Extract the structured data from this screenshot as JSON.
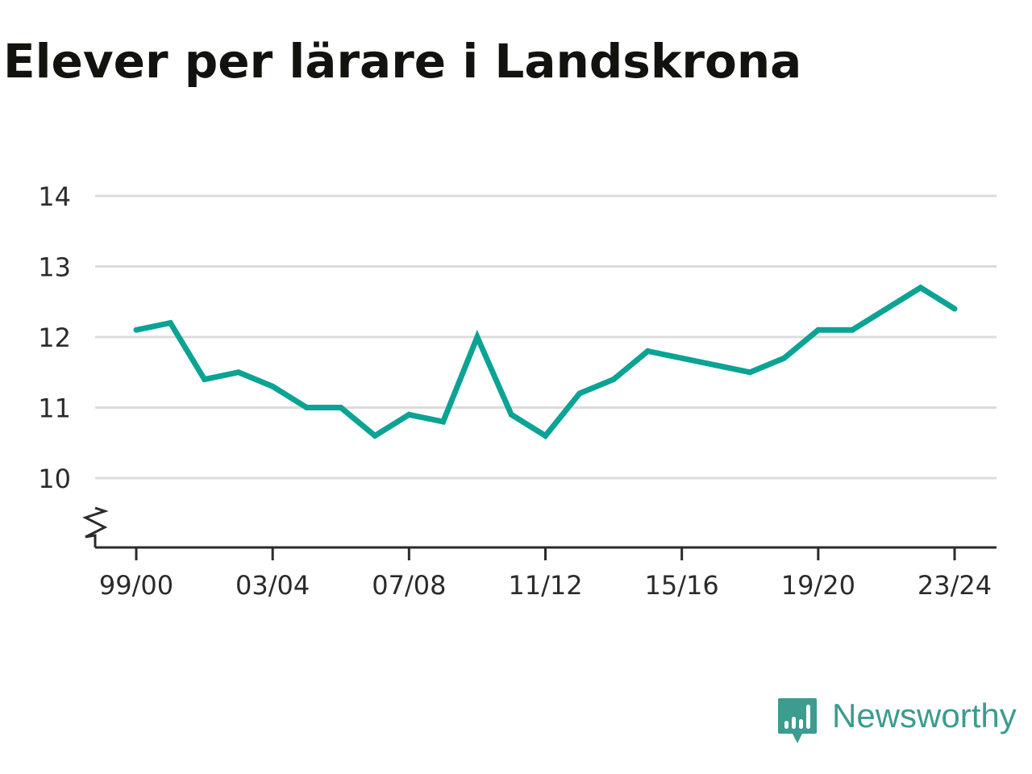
{
  "title": "Elever per lärare i Landskrona",
  "brand": {
    "name": "Newsworthy",
    "color": "#3b9c8f",
    "icon": "newsworthy-logo-icon"
  },
  "colors": {
    "line": "#0aa394",
    "grid": "#dcdcdc",
    "axis": "#2b2b2b",
    "text": "#12130f"
  },
  "chart_data": {
    "type": "line",
    "title": "Elever per lärare i Landskrona",
    "xlabel": "",
    "ylabel": "",
    "ylim": [
      9,
      14
    ],
    "y_ticks": [
      10,
      11,
      12,
      13,
      14
    ],
    "y_axis_break": true,
    "grid": true,
    "legend": "none",
    "x": [
      "99/00",
      "00/01",
      "01/02",
      "02/03",
      "03/04",
      "04/05",
      "05/06",
      "06/07",
      "07/08",
      "08/09",
      "09/10",
      "10/11",
      "11/12",
      "12/13",
      "13/14",
      "14/15",
      "15/16",
      "16/17",
      "17/18",
      "18/19",
      "19/20",
      "20/21",
      "21/22",
      "22/23",
      "23/24"
    ],
    "x_tick_labels": [
      "99/00",
      "03/04",
      "07/08",
      "11/12",
      "15/16",
      "19/20",
      "23/24"
    ],
    "series": [
      {
        "values": [
          12.1,
          12.2,
          11.4,
          11.5,
          11.3,
          11.0,
          11.0,
          10.6,
          10.9,
          10.8,
          12.0,
          10.9,
          10.6,
          11.2,
          11.4,
          11.8,
          11.7,
          11.6,
          11.5,
          11.7,
          12.1,
          12.1,
          12.4,
          12.7,
          12.4
        ]
      }
    ]
  }
}
